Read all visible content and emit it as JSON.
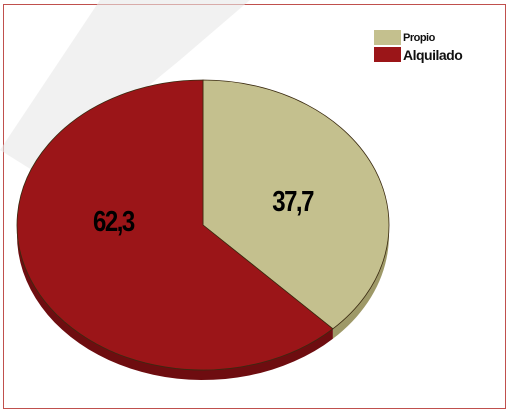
{
  "chart_data": {
    "type": "pie",
    "title": "",
    "slices": [
      {
        "label": "Propio",
        "value": 37.7,
        "value_label": "37,7",
        "color": "#c4c08e",
        "side_color": "#9e9968"
      },
      {
        "label": "Alquilado",
        "value": 62.3,
        "value_label": "62,3",
        "color": "#9b1518",
        "side_color": "#6e0d10"
      }
    ],
    "legend_position": "top-right",
    "three_d": true
  }
}
